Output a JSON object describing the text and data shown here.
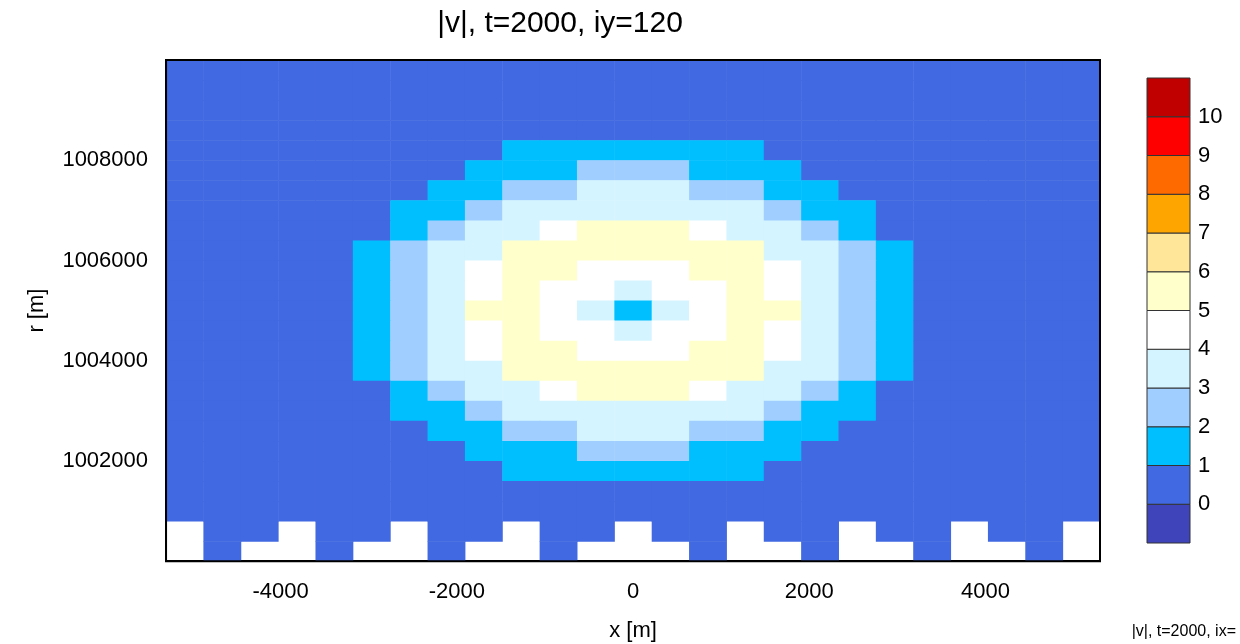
{
  "chart_data": {
    "type": "heatmap",
    "title": "|v|, t=2000, iy=120",
    "xlabel": "x [m]",
    "ylabel": "r [m]",
    "annotations": [
      "|v|, t=2000, ix="
    ],
    "x": [
      -5088,
      -4664,
      -4240,
      -3816,
      -3392,
      -2968,
      -2544,
      -2120,
      -1696,
      -1272,
      -848,
      -424,
      0,
      424,
      848,
      1272,
      1696,
      2120,
      2544,
      2968,
      3392,
      3816,
      4240,
      4664,
      5088
    ],
    "xlim": [
      -5300,
      5300
    ],
    "xticks": [
      -4000,
      -2000,
      0,
      2000,
      4000
    ],
    "ylim": [
      1000000,
      1010000
    ],
    "yticks": [
      1002000,
      1004000,
      1006000,
      1008000
    ],
    "clim": [
      -1,
      11
    ],
    "cticks": [
      0,
      1,
      2,
      3,
      4,
      5,
      6,
      7,
      8,
      9,
      10
    ],
    "colors": [
      "#3f44bb",
      "#4169e1",
      "#00bfff",
      "#a0cfff",
      "#d4f4ff",
      "#ffffff",
      "#ffffcc",
      "#ffe699",
      "#ffa500",
      "#ff6a00",
      "#ff0000",
      "#c00000"
    ],
    "cells": [
      [
        0.5,
        0.5,
        0.5,
        0.5,
        0.5,
        0.5,
        0.5,
        0.5,
        0.5,
        0.5,
        0.5,
        0.5,
        0.5,
        0.5,
        0.5,
        0.5,
        0.5,
        0.5,
        0.5,
        0.5,
        0.5,
        0.5,
        0.5,
        0.5,
        0.5
      ],
      [
        0.5,
        0.5,
        0.5,
        0.5,
        0.5,
        0.5,
        0.5,
        0.5,
        0.5,
        0.5,
        0.5,
        0.5,
        0.5,
        0.5,
        0.5,
        0.5,
        0.5,
        0.5,
        0.5,
        0.5,
        0.5,
        0.5,
        0.5,
        0.5,
        0.5
      ],
      [
        0.5,
        0.5,
        0.5,
        0.5,
        0.5,
        0.5,
        0.5,
        0.5,
        0.5,
        0.5,
        0.5,
        0.5,
        0.5,
        0.5,
        0.5,
        0.5,
        0.5,
        0.5,
        0.5,
        0.5,
        0.5,
        0.5,
        0.5,
        0.5,
        0.5
      ],
      [
        0.5,
        0.5,
        0.5,
        0.5,
        0.5,
        0.5,
        0.5,
        0.5,
        0.5,
        0.5,
        0.5,
        0.5,
        0.5,
        0.5,
        0.5,
        0.5,
        0.5,
        0.5,
        0.5,
        0.5,
        0.5,
        0.5,
        0.5,
        0.5,
        0.5
      ],
      [
        0.5,
        0.5,
        0.5,
        0.5,
        0.5,
        0.5,
        0.5,
        0.5,
        0.5,
        1.5,
        1.5,
        1.5,
        1.5,
        1.5,
        1.5,
        1.5,
        0.5,
        0.5,
        0.5,
        0.5,
        0.5,
        0.5,
        0.5,
        0.5,
        0.5
      ],
      [
        0.5,
        0.5,
        0.5,
        0.5,
        0.5,
        0.5,
        0.5,
        0.5,
        1.5,
        1.5,
        1.5,
        2.5,
        2.5,
        2.5,
        1.5,
        1.5,
        1.5,
        0.5,
        0.5,
        0.5,
        0.5,
        0.5,
        0.5,
        0.5,
        0.5
      ],
      [
        0.5,
        0.5,
        0.5,
        0.5,
        0.5,
        0.5,
        0.5,
        1.5,
        1.5,
        2.5,
        2.5,
        3.5,
        3.5,
        3.5,
        2.5,
        2.5,
        1.5,
        1.5,
        0.5,
        0.5,
        0.5,
        0.5,
        0.5,
        0.5,
        0.5
      ],
      [
        0.5,
        0.5,
        0.5,
        0.5,
        0.5,
        0.5,
        1.5,
        1.5,
        2.5,
        3.5,
        3.5,
        3.5,
        3.5,
        3.5,
        3.5,
        3.5,
        2.5,
        1.5,
        1.5,
        0.5,
        0.5,
        0.5,
        0.5,
        0.5,
        0.5
      ],
      [
        0.5,
        0.5,
        0.5,
        0.5,
        0.5,
        0.5,
        1.5,
        2.5,
        3.5,
        3.5,
        4.5,
        5.5,
        5.5,
        5.5,
        4.5,
        3.5,
        3.5,
        2.5,
        1.5,
        0.5,
        0.5,
        0.5,
        0.5,
        0.5,
        0.5
      ],
      [
        0.5,
        0.5,
        0.5,
        0.5,
        0.5,
        1.5,
        2.5,
        3.5,
        3.5,
        5.5,
        5.5,
        5.5,
        5.5,
        5.5,
        5.5,
        5.5,
        3.5,
        3.5,
        2.5,
        1.5,
        0.5,
        0.5,
        0.5,
        0.5,
        0.5
      ],
      [
        0.5,
        0.5,
        0.5,
        0.5,
        0.5,
        1.5,
        2.5,
        3.5,
        4.5,
        5.5,
        5.5,
        4.5,
        4.5,
        4.5,
        5.5,
        5.5,
        4.5,
        3.5,
        2.5,
        1.5,
        0.5,
        0.5,
        0.5,
        0.5,
        0.5
      ],
      [
        0.5,
        0.5,
        0.5,
        0.5,
        0.5,
        1.5,
        2.5,
        3.5,
        4.5,
        5.5,
        4.5,
        4.5,
        3.5,
        4.5,
        4.5,
        5.5,
        4.5,
        3.5,
        2.5,
        1.5,
        0.5,
        0.5,
        0.5,
        0.5,
        0.5
      ],
      [
        0.5,
        0.5,
        0.5,
        0.5,
        0.5,
        1.5,
        2.5,
        3.5,
        5.5,
        5.5,
        4.5,
        3.5,
        1.5,
        3.5,
        4.5,
        5.5,
        5.5,
        3.5,
        2.5,
        1.5,
        0.5,
        0.5,
        0.5,
        0.5,
        0.5
      ],
      [
        0.5,
        0.5,
        0.5,
        0.5,
        0.5,
        1.5,
        2.5,
        3.5,
        4.5,
        5.5,
        4.5,
        4.5,
        3.5,
        4.5,
        4.5,
        5.5,
        4.5,
        3.5,
        2.5,
        1.5,
        0.5,
        0.5,
        0.5,
        0.5,
        0.5
      ],
      [
        0.5,
        0.5,
        0.5,
        0.5,
        0.5,
        1.5,
        2.5,
        3.5,
        4.5,
        5.5,
        5.5,
        4.5,
        4.5,
        4.5,
        5.5,
        5.5,
        4.5,
        3.5,
        2.5,
        1.5,
        0.5,
        0.5,
        0.5,
        0.5,
        0.5
      ],
      [
        0.5,
        0.5,
        0.5,
        0.5,
        0.5,
        1.5,
        2.5,
        3.5,
        3.5,
        5.5,
        5.5,
        5.5,
        5.5,
        5.5,
        5.5,
        5.5,
        3.5,
        3.5,
        2.5,
        1.5,
        0.5,
        0.5,
        0.5,
        0.5,
        0.5
      ],
      [
        0.5,
        0.5,
        0.5,
        0.5,
        0.5,
        0.5,
        1.5,
        2.5,
        3.5,
        3.5,
        4.5,
        5.5,
        5.5,
        5.5,
        4.5,
        3.5,
        3.5,
        2.5,
        1.5,
        0.5,
        0.5,
        0.5,
        0.5,
        0.5,
        0.5
      ],
      [
        0.5,
        0.5,
        0.5,
        0.5,
        0.5,
        0.5,
        1.5,
        1.5,
        2.5,
        3.5,
        3.5,
        3.5,
        3.5,
        3.5,
        3.5,
        3.5,
        2.5,
        1.5,
        1.5,
        0.5,
        0.5,
        0.5,
        0.5,
        0.5,
        0.5
      ],
      [
        0.5,
        0.5,
        0.5,
        0.5,
        0.5,
        0.5,
        0.5,
        1.5,
        1.5,
        2.5,
        2.5,
        3.5,
        3.5,
        3.5,
        2.5,
        2.5,
        1.5,
        1.5,
        0.5,
        0.5,
        0.5,
        0.5,
        0.5,
        0.5,
        0.5
      ],
      [
        0.5,
        0.5,
        0.5,
        0.5,
        0.5,
        0.5,
        0.5,
        0.5,
        1.5,
        1.5,
        1.5,
        2.5,
        2.5,
        2.5,
        1.5,
        1.5,
        1.5,
        0.5,
        0.5,
        0.5,
        0.5,
        0.5,
        0.5,
        0.5,
        0.5
      ],
      [
        0.5,
        0.5,
        0.5,
        0.5,
        0.5,
        0.5,
        0.5,
        0.5,
        0.5,
        1.5,
        1.5,
        1.5,
        1.5,
        1.5,
        1.5,
        1.5,
        0.5,
        0.5,
        0.5,
        0.5,
        0.5,
        0.5,
        0.5,
        0.5,
        0.5
      ],
      [
        0.5,
        0.5,
        0.5,
        0.5,
        0.5,
        0.5,
        0.5,
        0.5,
        0.5,
        0.5,
        0.5,
        0.5,
        0.5,
        0.5,
        0.5,
        0.5,
        0.5,
        0.5,
        0.5,
        0.5,
        0.5,
        0.5,
        0.5,
        0.5,
        0.5
      ],
      [
        0.5,
        0.5,
        0.5,
        0.5,
        0.5,
        0.5,
        0.5,
        0.5,
        0.5,
        0.5,
        0.5,
        0.5,
        0.5,
        0.5,
        0.5,
        0.5,
        0.5,
        0.5,
        0.5,
        0.5,
        0.5,
        0.5,
        0.5,
        0.5,
        0.5
      ],
      [
        null,
        0.5,
        0.5,
        null,
        0.5,
        0.5,
        null,
        0.5,
        0.5,
        null,
        0.5,
        0.5,
        null,
        0.5,
        0.5,
        null,
        0.5,
        0.5,
        null,
        0.5,
        0.5,
        null,
        0.5,
        0.5,
        null
      ],
      [
        null,
        0.5,
        null,
        null,
        0.5,
        null,
        null,
        0.5,
        null,
        null,
        0.5,
        null,
        null,
        null,
        0.5,
        null,
        null,
        0.5,
        null,
        null,
        0.5,
        null,
        null,
        0.5,
        null
      ]
    ]
  }
}
